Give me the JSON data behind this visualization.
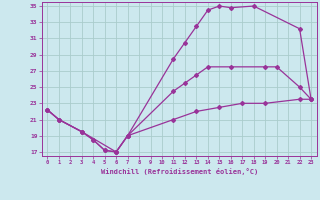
{
  "xlabel": "Windchill (Refroidissement éolien,°C)",
  "bg_color": "#cce8ee",
  "line_color": "#993399",
  "grid_color": "#aacccc",
  "xlim": [
    -0.5,
    23.5
  ],
  "ylim": [
    16.5,
    35.5
  ],
  "yticks": [
    17,
    19,
    21,
    23,
    25,
    27,
    29,
    31,
    33,
    35
  ],
  "xticks": [
    0,
    1,
    2,
    3,
    4,
    5,
    6,
    7,
    8,
    9,
    10,
    11,
    12,
    13,
    14,
    15,
    16,
    17,
    18,
    19,
    20,
    21,
    22,
    23
  ],
  "curve1_x": [
    0,
    1,
    3,
    4,
    5,
    6,
    7,
    11,
    12,
    13,
    14,
    15,
    16,
    18,
    22,
    23
  ],
  "curve1_y": [
    22.2,
    21.0,
    19.5,
    18.5,
    17.2,
    17.0,
    19.0,
    28.5,
    30.5,
    32.5,
    34.5,
    35.0,
    34.8,
    35.0,
    32.2,
    23.5
  ],
  "curve2_x": [
    0,
    1,
    3,
    4,
    5,
    6,
    7,
    11,
    12,
    13,
    14,
    16,
    19,
    20,
    22,
    23
  ],
  "curve2_y": [
    22.2,
    21.0,
    19.5,
    18.5,
    17.2,
    17.0,
    19.0,
    24.5,
    25.5,
    26.5,
    27.5,
    27.5,
    27.5,
    27.5,
    25.0,
    23.5
  ],
  "curve3_x": [
    0,
    1,
    3,
    6,
    7,
    11,
    13,
    15,
    17,
    19,
    22,
    23
  ],
  "curve3_y": [
    22.2,
    21.0,
    19.5,
    17.0,
    19.0,
    21.0,
    22.0,
    22.5,
    23.0,
    23.0,
    23.5,
    23.5
  ]
}
